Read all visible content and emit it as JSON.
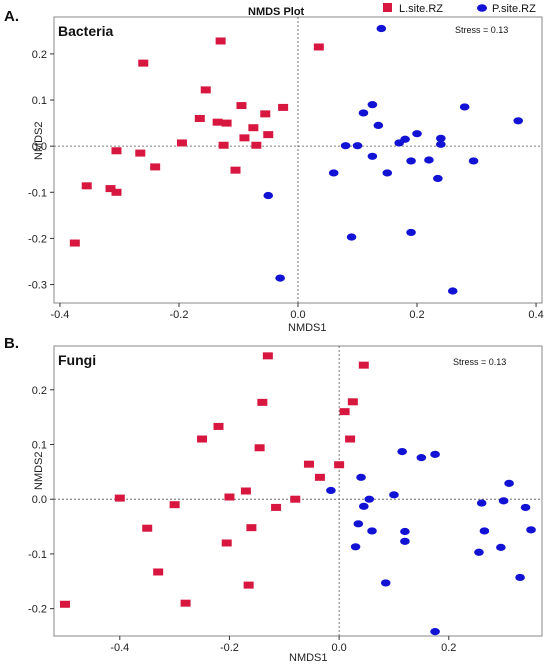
{
  "figure": {
    "title": "NMDS Plot",
    "legend": [
      {
        "label": "L.site.RZ",
        "color": "#d7173f",
        "shape": "square"
      },
      {
        "label": "P.site.RZ",
        "color": "#1212d4",
        "shape": "ellipse"
      }
    ]
  },
  "chart_data": [
    {
      "type": "scatter",
      "panel_label": "A.",
      "title": "Bacteria",
      "stress_text": "Stress = 0.13",
      "xlabel": "NMDS1",
      "ylabel": "NMDS2",
      "xlim": [
        -0.41,
        0.41
      ],
      "ylim": [
        -0.34,
        0.28
      ],
      "xticks": [
        -0.4,
        -0.2,
        0.0,
        0.2,
        0.4
      ],
      "xtick_labels": [
        "-0.4",
        "-0.2",
        "0.0",
        "0.2",
        "0.4"
      ],
      "yticks": [
        0.2,
        0.1,
        0.0,
        -0.1,
        -0.2,
        -0.3
      ],
      "ytick_labels": [
        "0.2",
        "0.1",
        "0.0",
        "-0.1",
        "-0.2",
        "-0.3"
      ],
      "grid": false,
      "legend_position": "top",
      "series": [
        {
          "name": "L.site.RZ",
          "color": "#d7173f",
          "x": [
            -0.13,
            0.035,
            -0.26,
            -0.155,
            -0.095,
            -0.025,
            -0.055,
            -0.12,
            -0.135,
            -0.165,
            -0.075,
            -0.05,
            -0.09,
            -0.125,
            -0.195,
            -0.07,
            -0.305,
            -0.265,
            -0.24,
            -0.105,
            -0.355,
            -0.315,
            -0.305,
            -0.375
          ],
          "y": [
            0.228,
            0.215,
            0.18,
            0.122,
            0.088,
            0.084,
            0.07,
            0.05,
            0.052,
            0.06,
            0.04,
            0.025,
            0.018,
            0.002,
            0.007,
            0.002,
            -0.01,
            -0.015,
            -0.045,
            -0.052,
            -0.086,
            -0.092,
            -0.1,
            -0.21
          ]
        },
        {
          "name": "P.site.RZ",
          "color": "#1212d4",
          "x": [
            0.14,
            0.125,
            0.28,
            0.11,
            0.37,
            0.135,
            0.2,
            0.24,
            0.18,
            0.17,
            0.24,
            0.08,
            0.1,
            0.125,
            0.19,
            0.22,
            0.295,
            0.06,
            0.15,
            0.235,
            -0.05,
            0.09,
            0.19,
            -0.03,
            0.26
          ],
          "y": [
            0.255,
            0.09,
            0.085,
            0.072,
            0.055,
            0.045,
            0.027,
            0.017,
            0.015,
            0.007,
            0.004,
            0.001,
            0.001,
            -0.022,
            -0.032,
            -0.03,
            -0.032,
            -0.058,
            -0.058,
            -0.07,
            -0.107,
            -0.197,
            -0.187,
            -0.286,
            -0.314
          ]
        }
      ]
    },
    {
      "type": "scatter",
      "panel_label": "B.",
      "title": "Fungi",
      "stress_text": "Stress = 0.13",
      "xlabel": "NMDS1",
      "ylabel": "NMDS2",
      "xlim": [
        -0.52,
        0.37
      ],
      "ylim": [
        -0.25,
        0.28
      ],
      "xticks": [
        -0.4,
        -0.2,
        0.0,
        0.2
      ],
      "xtick_labels": [
        "-0.4",
        "-0.2",
        "0.0",
        "0.2"
      ],
      "yticks": [
        0.2,
        0.1,
        0.0,
        -0.1,
        -0.2
      ],
      "ytick_labels": [
        "0.2",
        "0.1",
        "0.0",
        "-0.1",
        "-0.2"
      ],
      "grid": false,
      "legend_position": "none",
      "series": [
        {
          "name": "L.site.RZ",
          "color": "#d7173f",
          "x": [
            -0.13,
            0.045,
            -0.14,
            0.025,
            0.01,
            -0.22,
            0.02,
            -0.25,
            -0.145,
            -0.055,
            0.0,
            -0.17,
            -0.035,
            -0.4,
            -0.2,
            -0.08,
            -0.3,
            -0.115,
            -0.35,
            -0.16,
            -0.205,
            -0.33,
            -0.165,
            -0.28,
            -0.5
          ],
          "y": [
            0.262,
            0.245,
            0.177,
            0.178,
            0.16,
            0.133,
            0.11,
            0.11,
            0.094,
            0.064,
            0.063,
            0.015,
            0.04,
            0.002,
            0.004,
            0.0,
            -0.01,
            -0.015,
            -0.053,
            -0.052,
            -0.08,
            -0.133,
            -0.157,
            -0.19,
            -0.192
          ]
        },
        {
          "name": "P.site.RZ",
          "color": "#1212d4",
          "x": [
            0.115,
            0.175,
            0.15,
            0.31,
            0.04,
            -0.015,
            0.1,
            0.055,
            0.045,
            0.3,
            0.34,
            0.26,
            0.035,
            0.06,
            0.12,
            0.265,
            0.35,
            0.03,
            0.12,
            0.295,
            0.255,
            0.33,
            0.085,
            0.175
          ],
          "y": [
            0.087,
            0.082,
            0.076,
            0.029,
            0.04,
            0.016,
            0.008,
            0.0,
            -0.013,
            -0.003,
            -0.015,
            -0.007,
            -0.045,
            -0.058,
            -0.059,
            -0.058,
            -0.056,
            -0.087,
            -0.077,
            -0.088,
            -0.097,
            -0.143,
            -0.153,
            -0.242
          ]
        }
      ]
    }
  ]
}
